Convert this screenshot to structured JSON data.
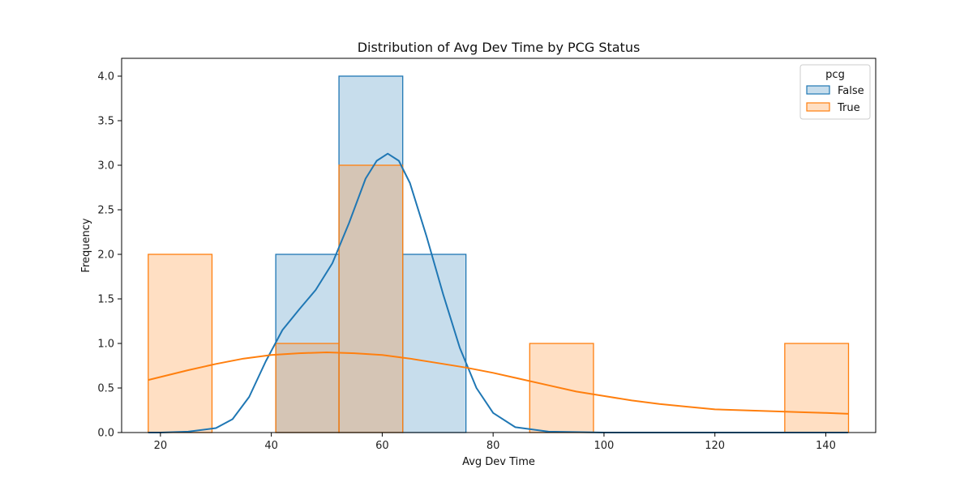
{
  "chart_data": {
    "type": "histogram",
    "title": "Distribution of Avg Dev Time by PCG Status",
    "xlabel": "Avg Dev Time",
    "ylabel": "Frequency",
    "xlim": [
      13,
      149
    ],
    "ylim": [
      0,
      4.2
    ],
    "xticks": [
      20,
      40,
      60,
      80,
      100,
      120,
      140
    ],
    "yticks": [
      0.0,
      0.5,
      1.0,
      1.5,
      2.0,
      2.5,
      3.0,
      3.5,
      4.0
    ],
    "ytick_labels": [
      "0.0",
      "0.5",
      "1.0",
      "1.5",
      "2.0",
      "2.5",
      "3.0",
      "3.5",
      "4.0"
    ],
    "grid": false,
    "legend": {
      "title": "pcg",
      "placement": "top-right"
    },
    "series": [
      {
        "name": "False",
        "color": "#1f77b4",
        "fill": "#c6dbec",
        "bins": [
          {
            "x0": 40.8,
            "x1": 52.2,
            "count": 2
          },
          {
            "x0": 52.2,
            "x1": 63.7,
            "count": 4
          },
          {
            "x0": 63.7,
            "x1": 75.1,
            "count": 2
          }
        ],
        "kde": [
          [
            17.8,
            0.0
          ],
          [
            20,
            0.0
          ],
          [
            25,
            0.01
          ],
          [
            30,
            0.05
          ],
          [
            33,
            0.15
          ],
          [
            36,
            0.4
          ],
          [
            39,
            0.8
          ],
          [
            42,
            1.15
          ],
          [
            45,
            1.38
          ],
          [
            48,
            1.6
          ],
          [
            51,
            1.9
          ],
          [
            54,
            2.35
          ],
          [
            57,
            2.85
          ],
          [
            59,
            3.05
          ],
          [
            61,
            3.13
          ],
          [
            63,
            3.05
          ],
          [
            65,
            2.8
          ],
          [
            68,
            2.2
          ],
          [
            71,
            1.55
          ],
          [
            74,
            0.95
          ],
          [
            77,
            0.5
          ],
          [
            80,
            0.22
          ],
          [
            84,
            0.06
          ],
          [
            90,
            0.01
          ],
          [
            100,
            0.0
          ],
          [
            120,
            0.0
          ],
          [
            144,
            0.0
          ]
        ]
      },
      {
        "name": "True",
        "color": "#ff7f0e",
        "fill": "#fedbbe",
        "bins": [
          {
            "x0": 17.8,
            "x1": 29.3,
            "count": 2
          },
          {
            "x0": 40.8,
            "x1": 52.2,
            "count": 1
          },
          {
            "x0": 52.2,
            "x1": 63.7,
            "count": 3
          },
          {
            "x0": 86.6,
            "x1": 98.1,
            "count": 1
          },
          {
            "x0": 132.6,
            "x1": 144.1,
            "count": 1
          }
        ],
        "kde": [
          [
            17.8,
            0.59
          ],
          [
            25,
            0.7
          ],
          [
            30,
            0.77
          ],
          [
            35,
            0.83
          ],
          [
            40,
            0.87
          ],
          [
            45,
            0.89
          ],
          [
            50,
            0.9
          ],
          [
            55,
            0.89
          ],
          [
            60,
            0.87
          ],
          [
            65,
            0.83
          ],
          [
            70,
            0.78
          ],
          [
            75,
            0.73
          ],
          [
            80,
            0.67
          ],
          [
            85,
            0.6
          ],
          [
            90,
            0.53
          ],
          [
            95,
            0.46
          ],
          [
            100,
            0.41
          ],
          [
            105,
            0.36
          ],
          [
            110,
            0.32
          ],
          [
            115,
            0.29
          ],
          [
            120,
            0.26
          ],
          [
            125,
            0.25
          ],
          [
            130,
            0.24
          ],
          [
            135,
            0.23
          ],
          [
            140,
            0.22
          ],
          [
            144.1,
            0.21
          ]
        ]
      }
    ]
  }
}
